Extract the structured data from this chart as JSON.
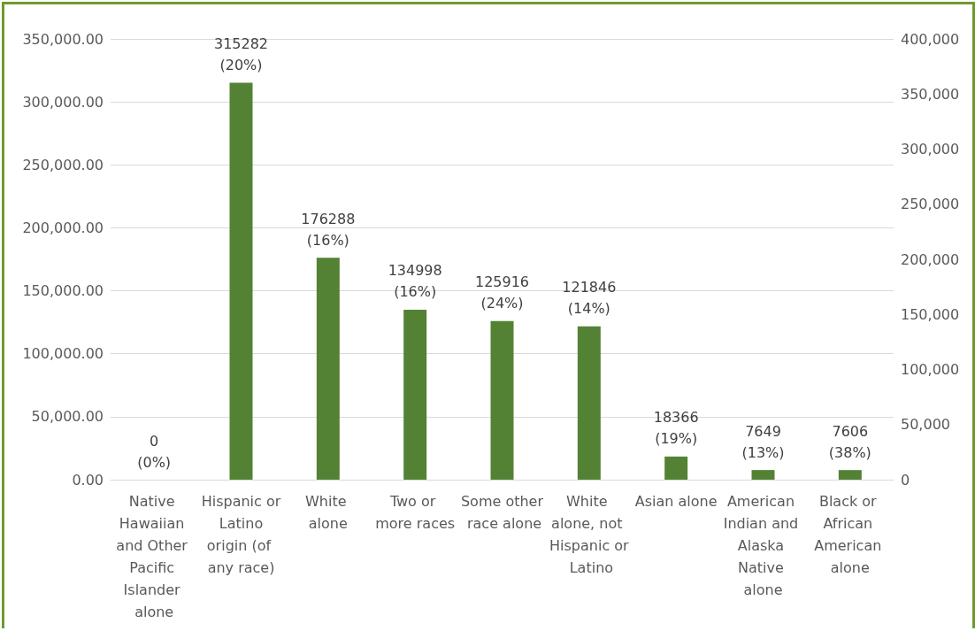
{
  "chart_data": {
    "type": "bar",
    "categories": [
      "Native Hawaiian and Other Pacific Islander alone",
      "Hispanic or Latino origin (of any race)",
      "White alone",
      "Two or more races",
      "Some other race alone",
      "White alone, not Hispanic or Latino",
      "Asian alone",
      "American Indian and Alaska Native alone",
      "Black or African American alone"
    ],
    "values": [
      0,
      315282,
      176288,
      134998,
      125916,
      121846,
      18366,
      7649,
      7606
    ],
    "value_labels": [
      "0\n(0%)",
      "315282\n(20%)",
      "176288\n(16%)",
      "134998\n(16%)",
      "125916\n(24%)",
      "121846\n(14%)",
      "18366\n(19%)",
      "7649\n(13%)",
      "7606\n(38%)"
    ],
    "color": "#548235",
    "ylim": [
      0,
      350000
    ],
    "yticks": [
      {
        "value": 0,
        "label": "0.00"
      },
      {
        "value": 50000,
        "label": "50,000.00"
      },
      {
        "value": 100000,
        "label": "100,000.00"
      },
      {
        "value": 150000,
        "label": "150,000.00"
      },
      {
        "value": 200000,
        "label": "200,000.00"
      },
      {
        "value": 250000,
        "label": "250,000.00"
      },
      {
        "value": 300000,
        "label": "300,000.00"
      },
      {
        "value": 350000,
        "label": "350,000.00"
      }
    ],
    "y2lim": [
      0,
      400000
    ],
    "y2ticks": [
      0,
      {
        "value": 50000,
        "label": "50,000"
      },
      {
        "value": 100000,
        "label": "100,000"
      },
      {
        "value": 150000,
        "label": "150,000"
      },
      {
        "value": 200000,
        "label": "200,000"
      },
      {
        "value": 250000,
        "label": "250,000"
      },
      {
        "value": 300000,
        "label": "300,000"
      },
      {
        "value": 350000,
        "label": "350,000"
      },
      {
        "value": 400000,
        "label": "400,000"
      }
    ],
    "grid": "y"
  }
}
